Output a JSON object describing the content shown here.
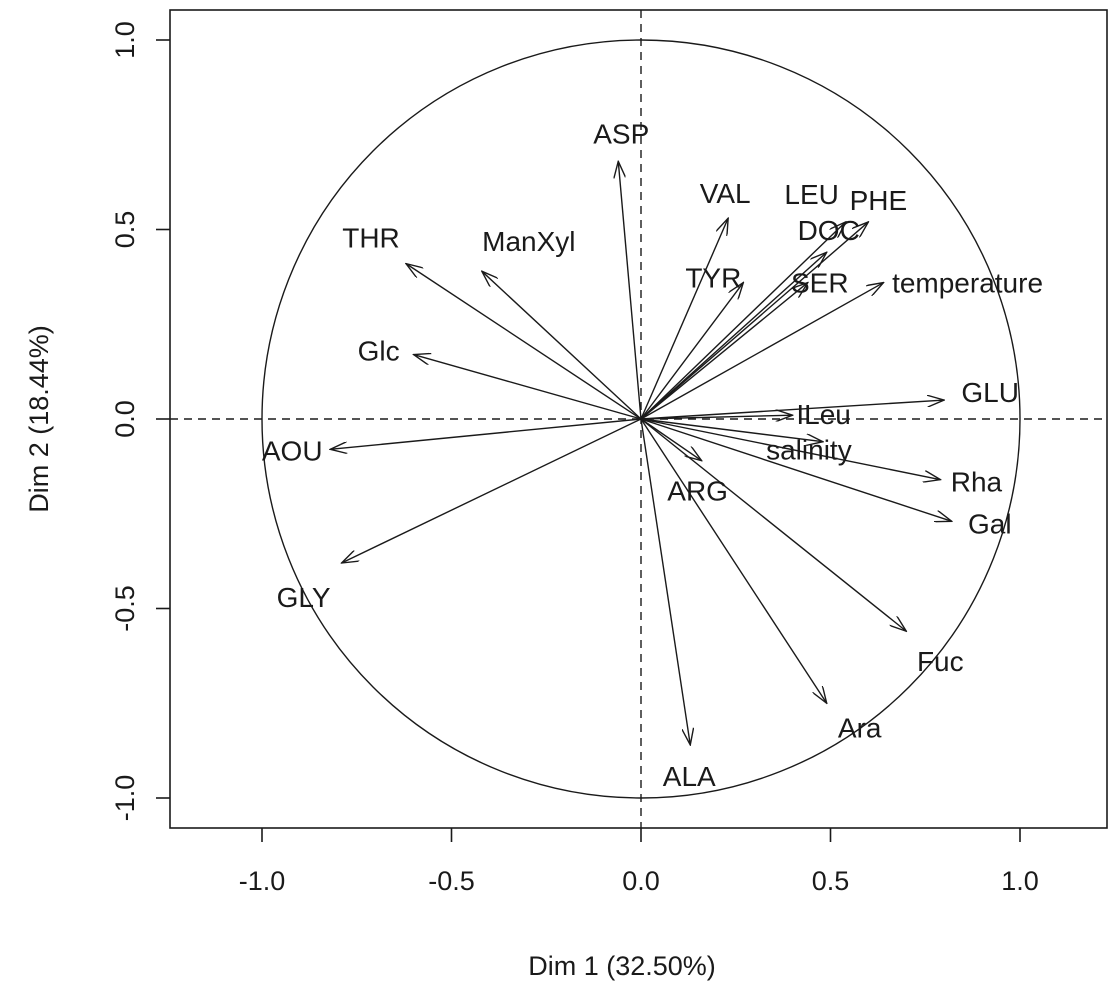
{
  "chart_data": {
    "type": "scatter",
    "subtype": "pca-correlation-circle",
    "title": "",
    "xlabel": "Dim 1 (32.50%)",
    "ylabel": "Dim 2 (18.44%)",
    "xlim": [
      -1.24,
      1.24
    ],
    "ylim": [
      -1.08,
      1.08
    ],
    "xticks": [
      -1.0,
      -0.5,
      0.0,
      0.5,
      1.0
    ],
    "xtick_labels": [
      "-1.0",
      "-0.5",
      "0.0",
      "0.5",
      "1.0"
    ],
    "yticks": [
      -1.0,
      -0.5,
      0.0,
      0.5,
      1.0
    ],
    "ytick_labels": [
      "-1.0",
      "-0.5",
      "0.0",
      "0.5",
      "1.0"
    ],
    "grid": false,
    "unit_circle": true,
    "reference_lines": "dashed at x=0 and y=0",
    "variables": [
      {
        "name": "ASP",
        "x": -0.06,
        "y": 0.68
      },
      {
        "name": "VAL",
        "x": 0.23,
        "y": 0.53
      },
      {
        "name": "LEU",
        "x": 0.54,
        "y": 0.52
      },
      {
        "name": "PHE",
        "x": 0.6,
        "y": 0.52
      },
      {
        "name": "DOC",
        "x": 0.49,
        "y": 0.44
      },
      {
        "name": "TYR",
        "x": 0.27,
        "y": 0.36
      },
      {
        "name": "SER",
        "x": 0.44,
        "y": 0.36
      },
      {
        "name": "temperature",
        "x": 0.64,
        "y": 0.36
      },
      {
        "name": "THR",
        "x": -0.62,
        "y": 0.41
      },
      {
        "name": "ManXyl",
        "x": -0.42,
        "y": 0.39
      },
      {
        "name": "Glc",
        "x": -0.6,
        "y": 0.17
      },
      {
        "name": "GLU",
        "x": 0.8,
        "y": 0.05
      },
      {
        "name": "ILeu",
        "x": 0.4,
        "y": 0.01
      },
      {
        "name": "salinity",
        "x": 0.48,
        "y": -0.06
      },
      {
        "name": "Rha",
        "x": 0.79,
        "y": -0.16
      },
      {
        "name": "Gal",
        "x": 0.82,
        "y": -0.27
      },
      {
        "name": "ARG",
        "x": 0.16,
        "y": -0.11
      },
      {
        "name": "AOU",
        "x": -0.82,
        "y": -0.08
      },
      {
        "name": "GLY",
        "x": -0.79,
        "y": -0.38
      },
      {
        "name": "Fuc",
        "x": 0.7,
        "y": -0.56
      },
      {
        "name": "Ara",
        "x": 0.49,
        "y": -0.75
      },
      {
        "name": "ALA",
        "x": 0.13,
        "y": -0.86
      }
    ]
  }
}
